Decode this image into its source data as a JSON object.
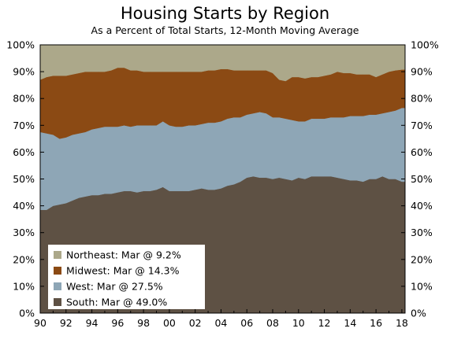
{
  "chart_data": {
    "type": "area",
    "stacked": true,
    "title": "Housing Starts by Region",
    "subtitle": "As a Percent of Total Starts, 12-Month Moving Average",
    "xlabel": "",
    "ylabel": "",
    "xlim": [
      1990,
      2018.25
    ],
    "ylim": [
      0,
      100
    ],
    "x_tick_labels": [
      "90",
      "92",
      "94",
      "96",
      "98",
      "00",
      "02",
      "04",
      "06",
      "08",
      "10",
      "12",
      "14",
      "16",
      "18"
    ],
    "y_tick_labels": [
      "0%",
      "10%",
      "20%",
      "30%",
      "40%",
      "50%",
      "60%",
      "70%",
      "80%",
      "90%",
      "100%"
    ],
    "grid": false,
    "legend_position": "bottom-left",
    "x": [
      1990,
      1990.5,
      1991,
      1991.5,
      1992,
      1992.5,
      1993,
      1993.5,
      1994,
      1994.5,
      1995,
      1995.5,
      1996,
      1996.5,
      1997,
      1997.5,
      1998,
      1998.5,
      1999,
      1999.5,
      2000,
      2000.5,
      2001,
      2001.5,
      2002,
      2002.5,
      2003,
      2003.5,
      2004,
      2004.5,
      2005,
      2005.5,
      2006,
      2006.5,
      2007,
      2007.5,
      2008,
      2008.5,
      2009,
      2009.5,
      2010,
      2010.5,
      2011,
      2011.5,
      2012,
      2012.5,
      2013,
      2013.5,
      2014,
      2014.5,
      2015,
      2015.5,
      2016,
      2016.5,
      2017,
      2017.5,
      2018,
      2018.25
    ],
    "series": [
      {
        "name": "South",
        "legend": "South: Mar @ 49.0%",
        "color": "#5e5144",
        "values": [
          38.5,
          38.5,
          40.0,
          40.5,
          41.0,
          42.0,
          43.0,
          43.5,
          44.0,
          44.0,
          44.5,
          44.5,
          45.0,
          45.5,
          45.5,
          45.0,
          45.5,
          45.5,
          46.0,
          47.0,
          45.5,
          45.5,
          45.5,
          45.5,
          46.0,
          46.5,
          46.0,
          46.0,
          46.5,
          47.5,
          48.0,
          49.0,
          50.5,
          51.0,
          50.5,
          50.5,
          50.0,
          50.5,
          50.0,
          49.5,
          50.5,
          50.0,
          51.0,
          51.0,
          51.0,
          51.0,
          50.5,
          50.0,
          49.5,
          49.5,
          49.0,
          50.0,
          50.0,
          51.0,
          50.0,
          50.0,
          49.0,
          49.0
        ]
      },
      {
        "name": "West",
        "legend": "West: Mar @ 27.5%",
        "color": "#8ea6b6",
        "values": [
          29.0,
          28.5,
          26.5,
          24.5,
          24.5,
          24.5,
          24.0,
          24.0,
          24.5,
          25.0,
          25.0,
          25.0,
          24.5,
          24.5,
          24.0,
          25.0,
          24.5,
          24.5,
          24.0,
          24.5,
          24.5,
          24.0,
          24.0,
          24.5,
          24.0,
          24.0,
          25.0,
          25.0,
          25.0,
          25.0,
          25.0,
          24.0,
          23.5,
          23.5,
          24.5,
          24.0,
          23.0,
          22.5,
          22.5,
          22.5,
          21.0,
          21.5,
          21.5,
          21.5,
          21.5,
          22.0,
          22.5,
          23.0,
          24.0,
          24.0,
          24.5,
          24.0,
          24.0,
          23.5,
          25.0,
          25.5,
          27.5,
          27.5
        ]
      },
      {
        "name": "Midwest",
        "legend": "Midwest: Mar @ 14.3%",
        "color": "#8b4a14",
        "values": [
          19.5,
          21.0,
          22.0,
          23.5,
          23.0,
          22.5,
          22.5,
          22.5,
          21.5,
          21.0,
          20.5,
          21.0,
          22.0,
          21.5,
          21.0,
          20.5,
          20.0,
          20.0,
          20.0,
          18.5,
          20.0,
          20.5,
          20.5,
          20.0,
          20.0,
          19.5,
          19.5,
          19.5,
          19.5,
          18.5,
          17.5,
          17.5,
          16.5,
          16.0,
          15.5,
          16.0,
          16.5,
          14.0,
          14.0,
          16.0,
          16.5,
          16.0,
          15.5,
          15.5,
          16.0,
          16.0,
          17.0,
          16.5,
          16.0,
          15.5,
          15.5,
          15.0,
          14.0,
          14.5,
          15.0,
          15.0,
          14.3,
          14.3
        ]
      },
      {
        "name": "Northeast",
        "legend": "Northeast: Mar @ 9.2%",
        "color": "#aca88a",
        "values": [
          13.0,
          12.0,
          11.5,
          11.5,
          11.5,
          11.0,
          10.5,
          10.0,
          10.0,
          10.0,
          10.0,
          9.5,
          8.5,
          8.5,
          9.5,
          9.5,
          10.0,
          10.0,
          10.0,
          10.0,
          10.0,
          10.0,
          10.0,
          10.0,
          10.0,
          10.0,
          9.5,
          9.5,
          9.0,
          9.0,
          9.5,
          9.5,
          9.5,
          9.5,
          9.5,
          9.5,
          10.5,
          13.0,
          13.5,
          12.0,
          12.0,
          12.5,
          12.0,
          12.0,
          11.5,
          11.0,
          10.0,
          10.5,
          10.5,
          11.0,
          11.0,
          11.0,
          12.0,
          11.0,
          10.0,
          9.5,
          9.2,
          9.2
        ]
      }
    ]
  }
}
